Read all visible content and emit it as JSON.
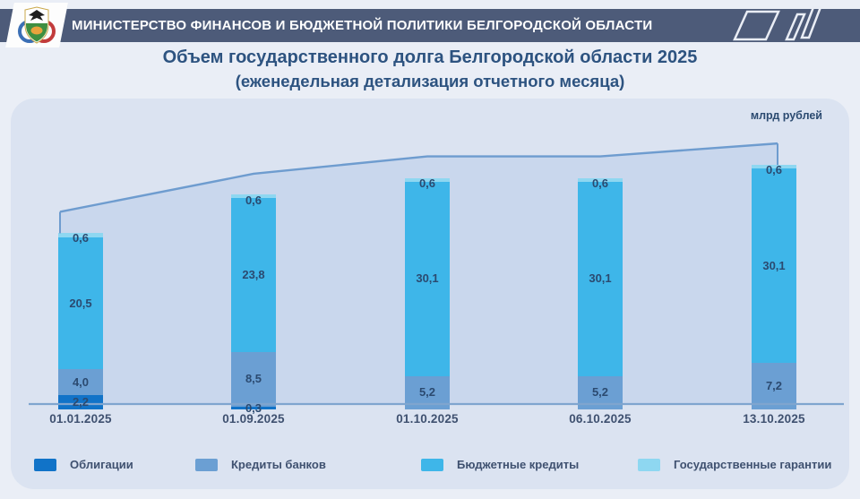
{
  "header": {
    "title": "МИНИСТЕРСТВО ФИНАНСОВ И БЮДЖЕТНОЙ ПОЛИТИКИ БЕЛГОРОДСКОЙ ОБЛАСТИ",
    "logo": "belgorod-region-coat-of-arms"
  },
  "title": {
    "line1": "Объем государственного долга Белгородской области 2025",
    "line2": "(еженедельная детализация отчетного месяца)"
  },
  "chart_data": {
    "type": "bar",
    "stacked": true,
    "unit_label": "млрд рублей",
    "categories": [
      "01.01.2025",
      "01.09.2025",
      "01.10.2025",
      "06.10.2025",
      "13.10.2025"
    ],
    "series": [
      {
        "name": "Облигации",
        "color": "#1173c8",
        "values": [
          2.2,
          0.3,
          0,
          0,
          0
        ]
      },
      {
        "name": "Кредиты банков",
        "color": "#6b9fd3",
        "values": [
          4.0,
          8.5,
          5.2,
          5.2,
          7.2
        ]
      },
      {
        "name": "Бюджетные кредиты",
        "color": "#3eb6e9",
        "values": [
          20.5,
          23.8,
          30.1,
          30.1,
          30.1
        ]
      },
      {
        "name": "Государственные гарантии",
        "color": "#8ed7f1",
        "values": [
          0.6,
          0.6,
          0.6,
          0.6,
          0.6
        ]
      }
    ],
    "totals": [
      27.3,
      33.2,
      35.9,
      35.9,
      37.9
    ],
    "value_format": "comma-decimal-1",
    "totals_line": {
      "show": true,
      "color": "#6e9ccf",
      "area_fill": "#c9d7ed"
    },
    "axis_color": "#7fa5cf",
    "legend_position": "bottom",
    "grid": false
  },
  "colors": {
    "page_bg": "#eaeef6",
    "header_bg": "#4d5b79",
    "panel_bg": "#dbe3f1",
    "title_text": "#2d5380",
    "value_label_text": "#2b4a70",
    "date_text": "#3f5170"
  }
}
